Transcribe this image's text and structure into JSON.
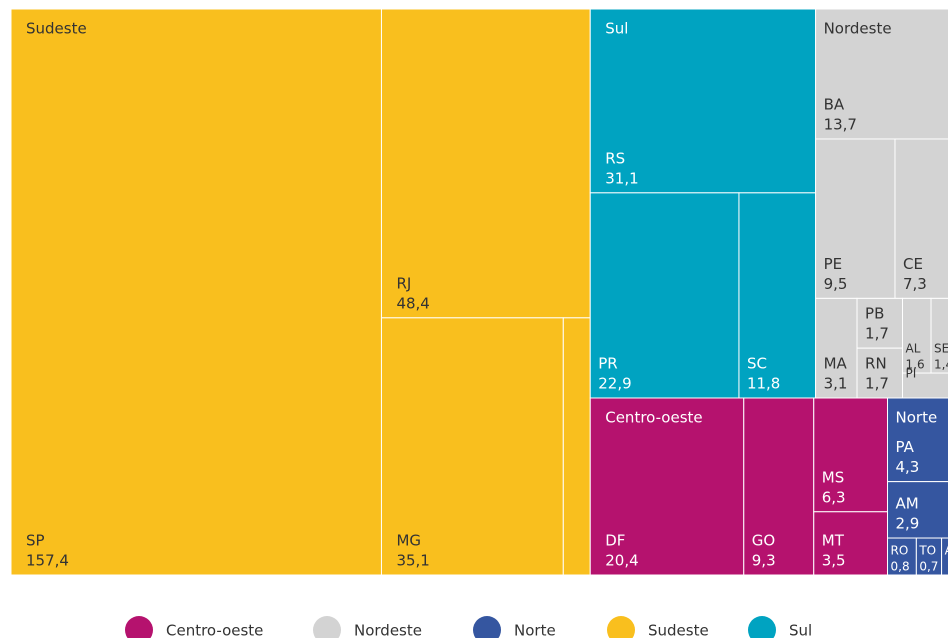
{
  "chart_data": {
    "type": "treemap",
    "series": [
      {
        "name": "Centro-oeste",
        "color": "#b5126e",
        "labels": [
          "DF",
          "GO",
          "MS",
          "MT"
        ],
        "values": [
          20.4,
          9.3,
          6.3,
          3.5
        ],
        "value_labels": [
          "20,4",
          "9,3",
          "6,3",
          "3,5"
        ]
      },
      {
        "name": "Nordeste",
        "color": "#d3d3d3",
        "labels": [
          "BA",
          "PE",
          "CE",
          "PB",
          "AL",
          "SE",
          "MA",
          "RN",
          "PI"
        ],
        "values": [
          13.7,
          9.5,
          7.3,
          1.7,
          1.6,
          1.4,
          3.1,
          1.7,
          1.0
        ],
        "value_labels": [
          "13,7",
          "9,5",
          "7,3",
          "1,7",
          "1,6",
          "1,4",
          "3,1",
          "1,7",
          null
        ]
      },
      {
        "name": "Norte",
        "color": "#3556a0",
        "labels": [
          "PA",
          "AM",
          "RO",
          "TO",
          "AC"
        ],
        "values": [
          4.3,
          2.9,
          0.8,
          0.7,
          0.4
        ],
        "value_labels": [
          "4,3",
          "2,9",
          "0,8",
          "0,7",
          null
        ]
      },
      {
        "name": "Sudeste",
        "color": "#f9bf1e",
        "labels": [
          "SP",
          "RJ",
          "MG",
          null
        ],
        "values": [
          157.4,
          48.4,
          35.1,
          5.2
        ],
        "value_labels": [
          "157,4",
          "48,4",
          "35,1",
          null
        ]
      },
      {
        "name": "Sul",
        "color": "#00a3c1",
        "labels": [
          "RS",
          "PR",
          "SC"
        ],
        "values": [
          31.1,
          22.9,
          11.8
        ],
        "value_labels": [
          "31,1",
          "22,9",
          "11,8"
        ]
      }
    ]
  }
}
